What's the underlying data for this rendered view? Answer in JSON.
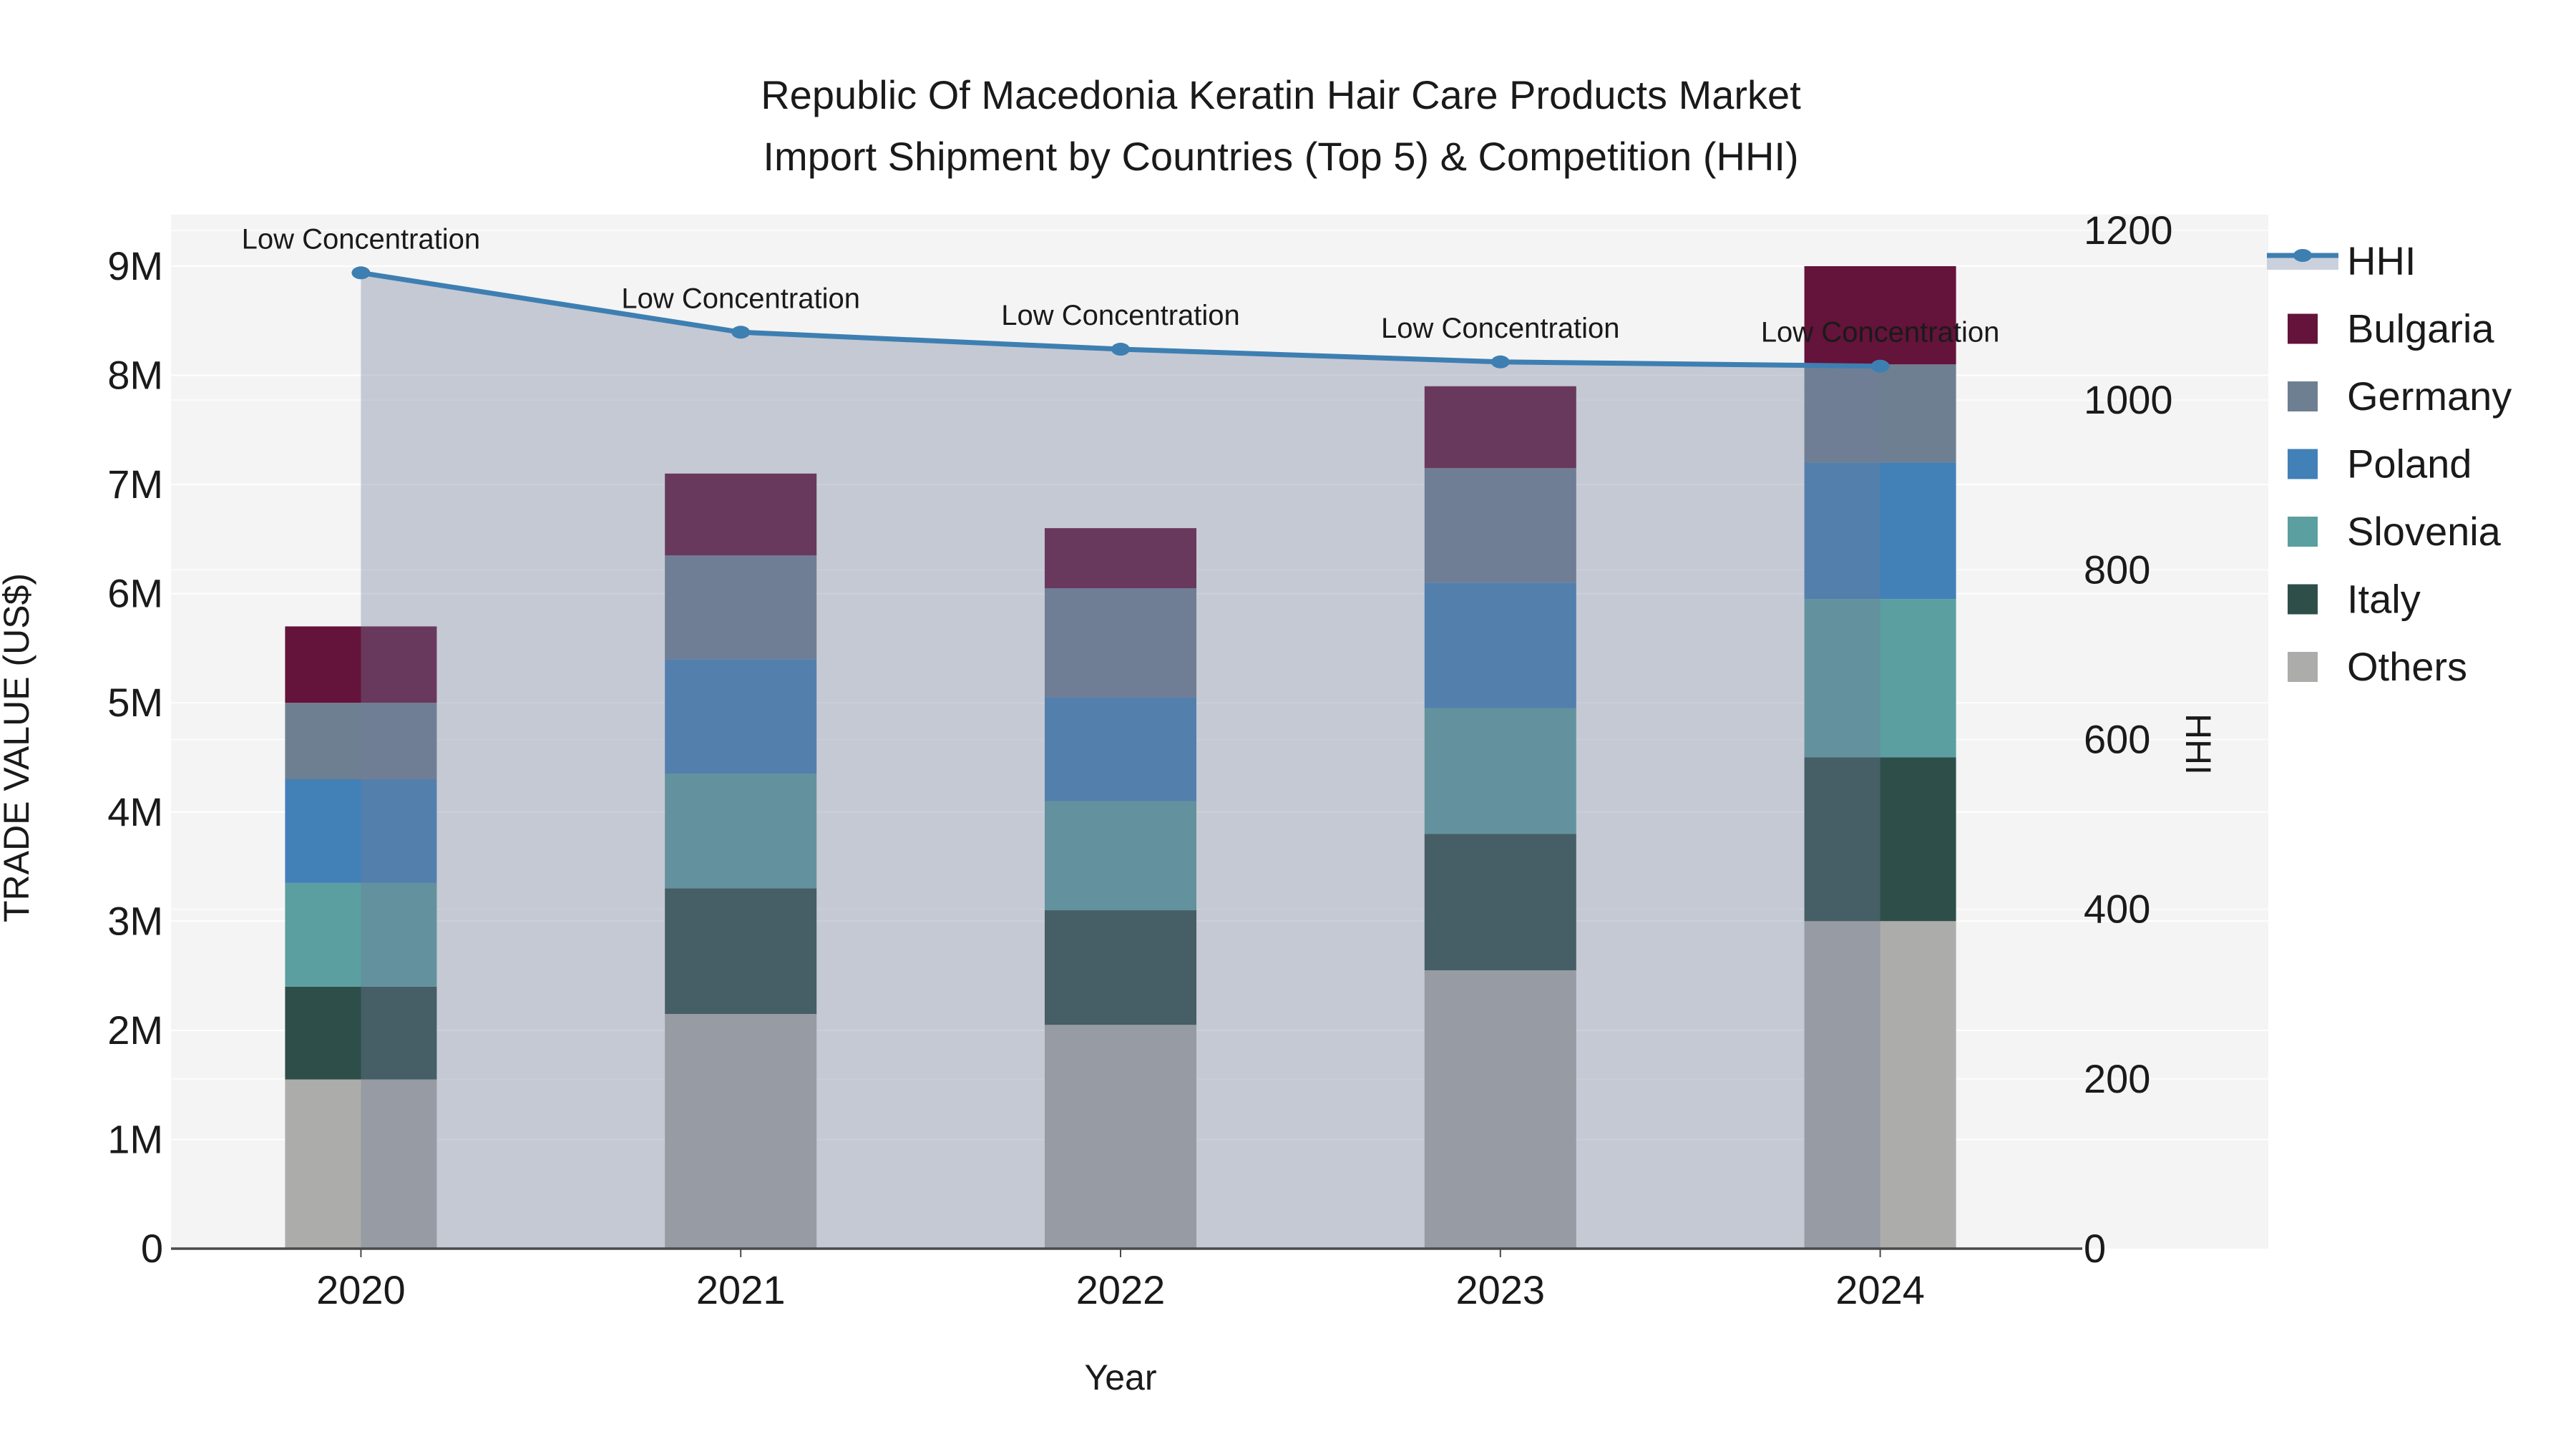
{
  "chart_data": {
    "type": "combo-stacked-bar-line",
    "title": {
      "line1": "Republic Of Macedonia Keratin Hair Care Products Market",
      "line2": "Import Shipment by Countries (Top 5) & Competition (HHI)"
    },
    "x_axis": {
      "label": "Year",
      "categories": [
        "2020",
        "2021",
        "2022",
        "2023",
        "2024"
      ]
    },
    "y_left": {
      "label": "TRADE VALUE (US$)",
      "tick_labels": [
        "0",
        "1M",
        "2M",
        "3M",
        "4M",
        "5M",
        "6M",
        "7M",
        "8M",
        "9M"
      ],
      "tick_values_millions": [
        0,
        1,
        2,
        3,
        4,
        5,
        6,
        7,
        8,
        9
      ],
      "range_millions": [
        0,
        9
      ]
    },
    "y_right": {
      "label": "HHI",
      "tick_values": [
        0,
        200,
        400,
        600,
        800,
        1000,
        1200
      ],
      "range": [
        0,
        1200
      ]
    },
    "stacked_series_bottom_to_top": [
      {
        "name": "Others",
        "color": "#ACACAA",
        "values_usd_millions": [
          1.55,
          2.15,
          2.05,
          2.55,
          3.0
        ]
      },
      {
        "name": "Italy",
        "color": "#2E4E49",
        "values_usd_millions": [
          0.85,
          1.15,
          1.05,
          1.25,
          1.5
        ]
      },
      {
        "name": "Slovenia",
        "color": "#5C9FA0",
        "values_usd_millions": [
          0.95,
          1.05,
          1.0,
          1.15,
          1.45
        ]
      },
      {
        "name": "Poland",
        "color": "#4280B8",
        "values_usd_millions": [
          0.95,
          1.05,
          0.95,
          1.15,
          1.25
        ]
      },
      {
        "name": "Germany",
        "color": "#6E7F91",
        "values_usd_millions": [
          0.7,
          0.95,
          1.0,
          1.05,
          0.9
        ]
      },
      {
        "name": "Bulgaria",
        "color": "#64133A",
        "values_usd_millions": [
          0.7,
          0.75,
          0.55,
          0.75,
          0.9
        ]
      }
    ],
    "bar_totals_usd_millions": [
      5.7,
      7.1,
      6.6,
      7.9,
      9.0
    ],
    "hhi_line": {
      "name": "HHI",
      "color": "#3E7FB2",
      "area_fill": "rgba(113,126,156,0.36)",
      "values": [
        1150,
        1080,
        1060,
        1045,
        1040
      ],
      "point_annotations": [
        "Low Concentration",
        "Low Concentration",
        "Low Concentration",
        "Low Concentration",
        "Low Concentration"
      ]
    },
    "legend": [
      {
        "label": "HHI",
        "type": "line",
        "color": "#3E7FB2"
      },
      {
        "label": "Bulgaria",
        "type": "swatch",
        "color": "#64133A"
      },
      {
        "label": "Germany",
        "type": "swatch",
        "color": "#6E7F91"
      },
      {
        "label": "Poland",
        "type": "swatch",
        "color": "#4280B8"
      },
      {
        "label": "Slovenia",
        "type": "swatch",
        "color": "#5C9FA0"
      },
      {
        "label": "Italy",
        "type": "swatch",
        "color": "#2E4E49"
      },
      {
        "label": "Others",
        "type": "swatch",
        "color": "#ACACAA"
      }
    ],
    "style": {
      "panel_background": "#F4F4F4",
      "gridline_color": "#FFFFFF",
      "axis_line_color": "#4A4A4A",
      "text_color": "#1A1A1A"
    }
  }
}
